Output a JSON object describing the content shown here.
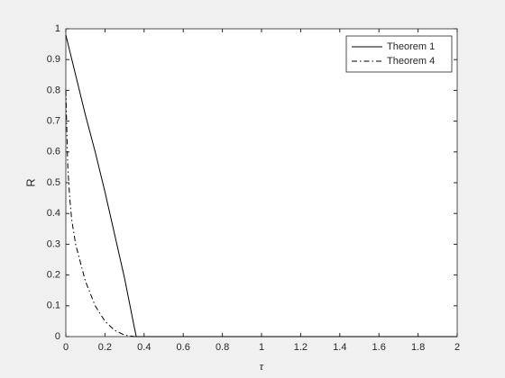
{
  "chart_data": {
    "type": "line",
    "xlabel": "τ",
    "ylabel": "R",
    "xlim": [
      0,
      2
    ],
    "ylim": [
      0,
      1
    ],
    "xticks": [
      0,
      0.2,
      0.4,
      0.6,
      0.8,
      1,
      1.2,
      1.4,
      1.6,
      1.8,
      2
    ],
    "yticks": [
      0,
      0.1,
      0.2,
      0.3,
      0.4,
      0.5,
      0.6,
      0.7,
      0.8,
      0.9,
      1
    ],
    "legend": "northeast",
    "series": [
      {
        "name": "Theorem 1",
        "color": "#000000",
        "style": "solid",
        "x": [
          0,
          0.05,
          0.1,
          0.15,
          0.2,
          0.25,
          0.3,
          0.35,
          0.36,
          2
        ],
        "values": [
          0.98,
          0.85,
          0.72,
          0.6,
          0.47,
          0.33,
          0.19,
          0.03,
          0,
          0
        ]
      },
      {
        "name": "Theorem 4",
        "color": "#000000",
        "style": "dashdot",
        "x": [
          0,
          0.01,
          0.02,
          0.03,
          0.05,
          0.1,
          0.15,
          0.2,
          0.25,
          0.3,
          0.35,
          2
        ],
        "values": [
          0.8,
          0.55,
          0.45,
          0.38,
          0.3,
          0.18,
          0.1,
          0.05,
          0.02,
          0.005,
          0,
          0
        ]
      }
    ]
  }
}
